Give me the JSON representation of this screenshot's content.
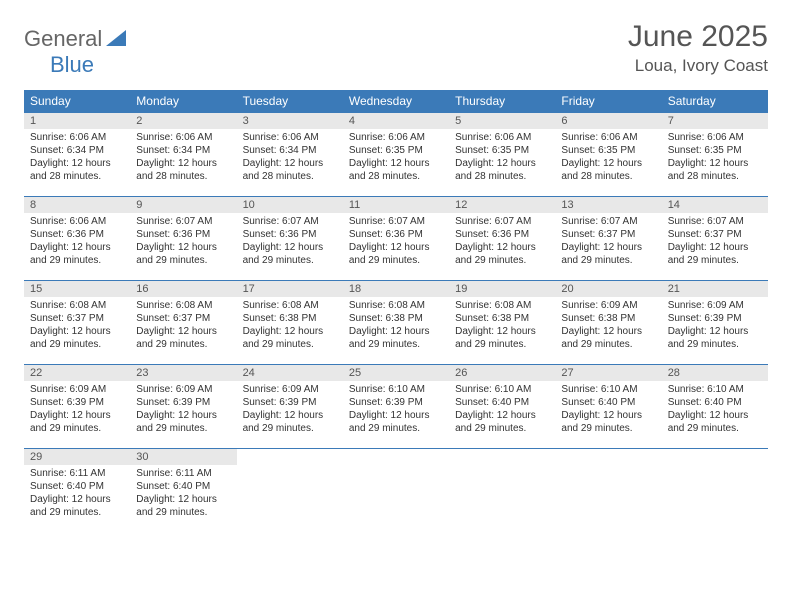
{
  "logo": {
    "text1": "General",
    "text2": "Blue"
  },
  "title": "June 2025",
  "location": "Loua, Ivory Coast",
  "colors": {
    "header_bg": "#3b7ab8",
    "header_text": "#ffffff",
    "daynum_bg": "#e8e8e8",
    "border": "#3b7ab8",
    "body_text": "#333333",
    "title_text": "#555555"
  },
  "weekdays": [
    "Sunday",
    "Monday",
    "Tuesday",
    "Wednesday",
    "Thursday",
    "Friday",
    "Saturday"
  ],
  "weeks": [
    [
      {
        "n": "1",
        "sr": "6:06 AM",
        "ss": "6:34 PM",
        "dl": "12 hours and 28 minutes."
      },
      {
        "n": "2",
        "sr": "6:06 AM",
        "ss": "6:34 PM",
        "dl": "12 hours and 28 minutes."
      },
      {
        "n": "3",
        "sr": "6:06 AM",
        "ss": "6:34 PM",
        "dl": "12 hours and 28 minutes."
      },
      {
        "n": "4",
        "sr": "6:06 AM",
        "ss": "6:35 PM",
        "dl": "12 hours and 28 minutes."
      },
      {
        "n": "5",
        "sr": "6:06 AM",
        "ss": "6:35 PM",
        "dl": "12 hours and 28 minutes."
      },
      {
        "n": "6",
        "sr": "6:06 AM",
        "ss": "6:35 PM",
        "dl": "12 hours and 28 minutes."
      },
      {
        "n": "7",
        "sr": "6:06 AM",
        "ss": "6:35 PM",
        "dl": "12 hours and 28 minutes."
      }
    ],
    [
      {
        "n": "8",
        "sr": "6:06 AM",
        "ss": "6:36 PM",
        "dl": "12 hours and 29 minutes."
      },
      {
        "n": "9",
        "sr": "6:07 AM",
        "ss": "6:36 PM",
        "dl": "12 hours and 29 minutes."
      },
      {
        "n": "10",
        "sr": "6:07 AM",
        "ss": "6:36 PM",
        "dl": "12 hours and 29 minutes."
      },
      {
        "n": "11",
        "sr": "6:07 AM",
        "ss": "6:36 PM",
        "dl": "12 hours and 29 minutes."
      },
      {
        "n": "12",
        "sr": "6:07 AM",
        "ss": "6:36 PM",
        "dl": "12 hours and 29 minutes."
      },
      {
        "n": "13",
        "sr": "6:07 AM",
        "ss": "6:37 PM",
        "dl": "12 hours and 29 minutes."
      },
      {
        "n": "14",
        "sr": "6:07 AM",
        "ss": "6:37 PM",
        "dl": "12 hours and 29 minutes."
      }
    ],
    [
      {
        "n": "15",
        "sr": "6:08 AM",
        "ss": "6:37 PM",
        "dl": "12 hours and 29 minutes."
      },
      {
        "n": "16",
        "sr": "6:08 AM",
        "ss": "6:37 PM",
        "dl": "12 hours and 29 minutes."
      },
      {
        "n": "17",
        "sr": "6:08 AM",
        "ss": "6:38 PM",
        "dl": "12 hours and 29 minutes."
      },
      {
        "n": "18",
        "sr": "6:08 AM",
        "ss": "6:38 PM",
        "dl": "12 hours and 29 minutes."
      },
      {
        "n": "19",
        "sr": "6:08 AM",
        "ss": "6:38 PM",
        "dl": "12 hours and 29 minutes."
      },
      {
        "n": "20",
        "sr": "6:09 AM",
        "ss": "6:38 PM",
        "dl": "12 hours and 29 minutes."
      },
      {
        "n": "21",
        "sr": "6:09 AM",
        "ss": "6:39 PM",
        "dl": "12 hours and 29 minutes."
      }
    ],
    [
      {
        "n": "22",
        "sr": "6:09 AM",
        "ss": "6:39 PM",
        "dl": "12 hours and 29 minutes."
      },
      {
        "n": "23",
        "sr": "6:09 AM",
        "ss": "6:39 PM",
        "dl": "12 hours and 29 minutes."
      },
      {
        "n": "24",
        "sr": "6:09 AM",
        "ss": "6:39 PM",
        "dl": "12 hours and 29 minutes."
      },
      {
        "n": "25",
        "sr": "6:10 AM",
        "ss": "6:39 PM",
        "dl": "12 hours and 29 minutes."
      },
      {
        "n": "26",
        "sr": "6:10 AM",
        "ss": "6:40 PM",
        "dl": "12 hours and 29 minutes."
      },
      {
        "n": "27",
        "sr": "6:10 AM",
        "ss": "6:40 PM",
        "dl": "12 hours and 29 minutes."
      },
      {
        "n": "28",
        "sr": "6:10 AM",
        "ss": "6:40 PM",
        "dl": "12 hours and 29 minutes."
      }
    ],
    [
      {
        "n": "29",
        "sr": "6:11 AM",
        "ss": "6:40 PM",
        "dl": "12 hours and 29 minutes."
      },
      {
        "n": "30",
        "sr": "6:11 AM",
        "ss": "6:40 PM",
        "dl": "12 hours and 29 minutes."
      },
      null,
      null,
      null,
      null,
      null
    ]
  ],
  "labels": {
    "sunrise": "Sunrise:",
    "sunset": "Sunset:",
    "daylight": "Daylight:"
  }
}
